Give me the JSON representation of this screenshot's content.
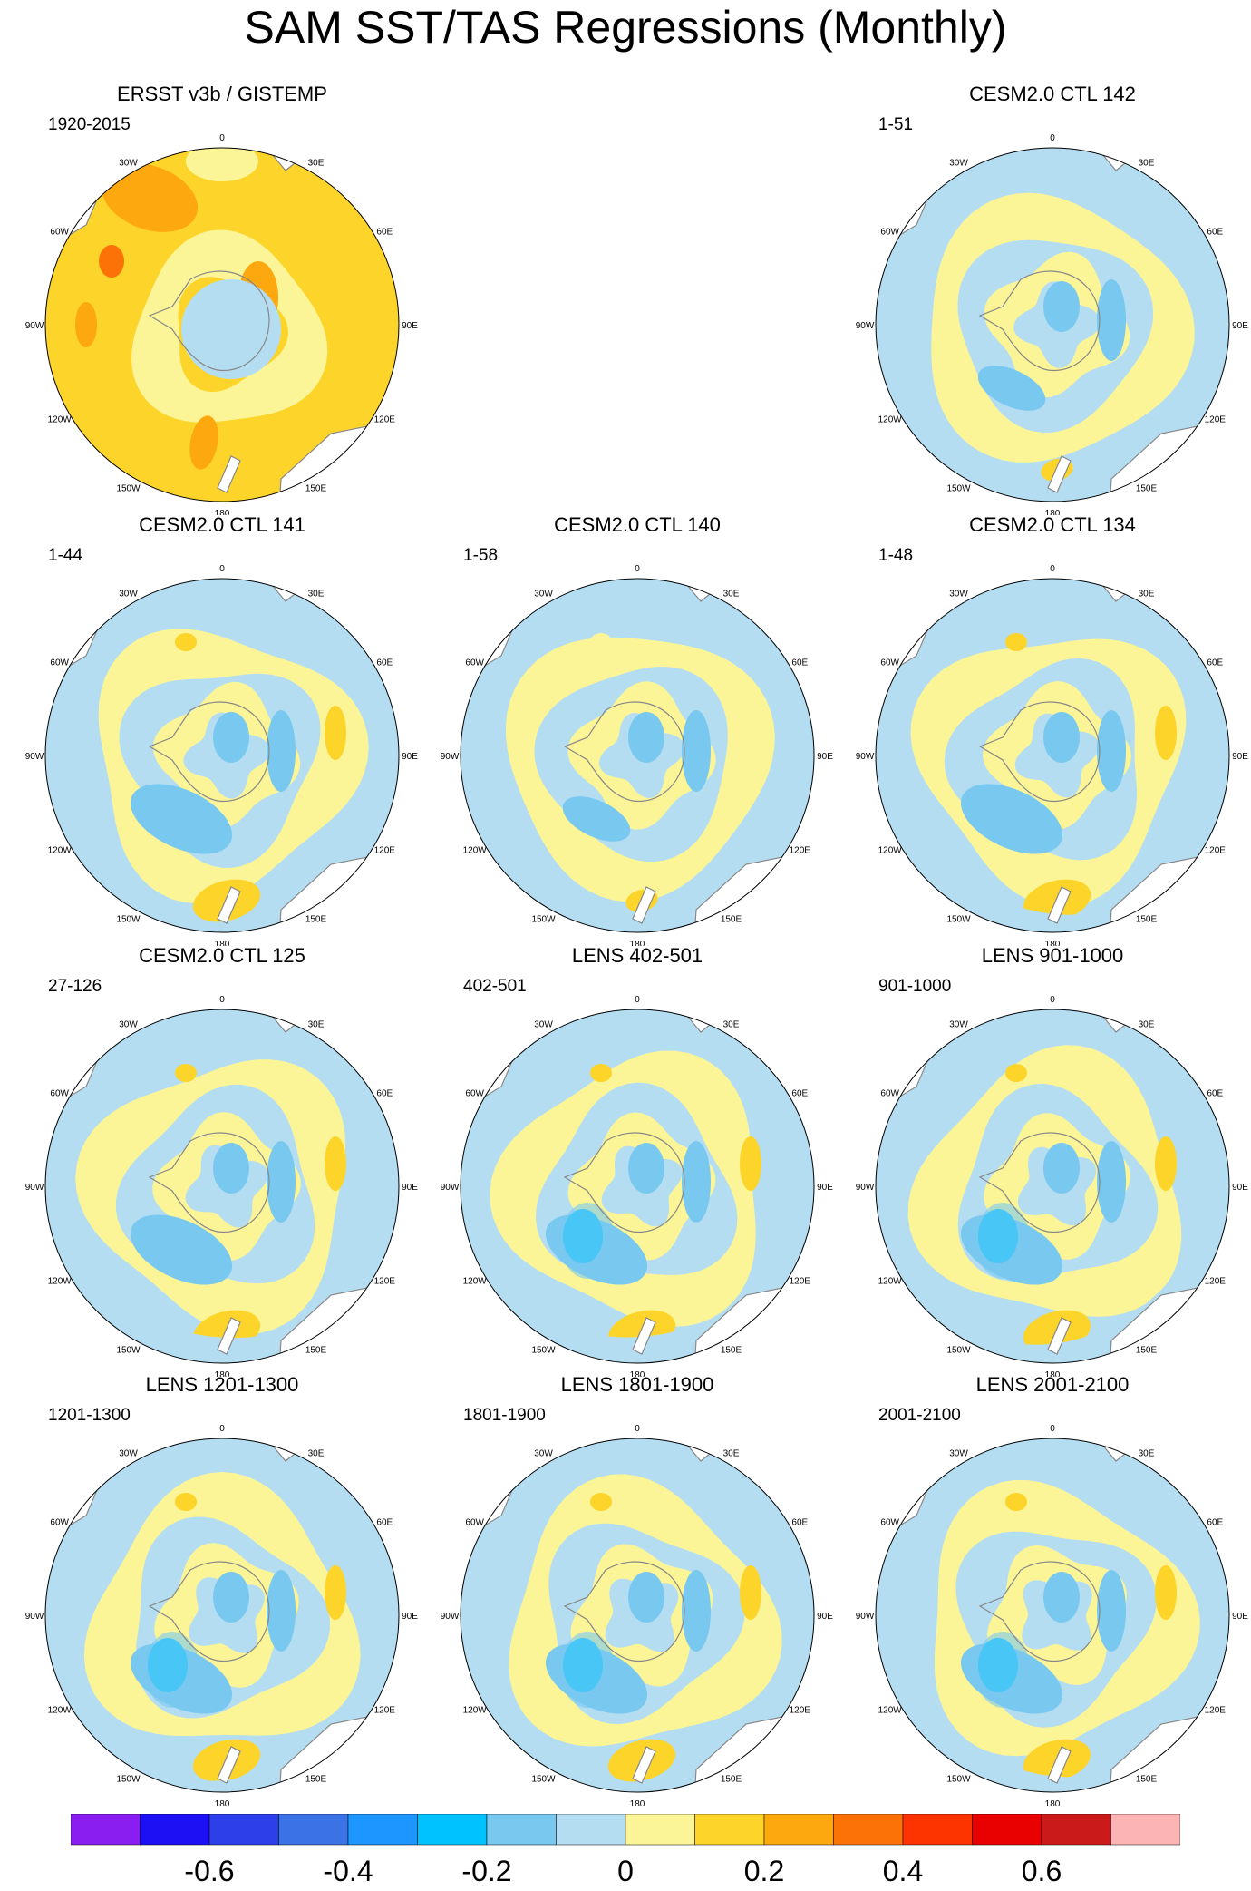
{
  "title": "SAM SST/TAS Regressions (Monthly)",
  "panels": [
    {
      "id": "p1",
      "title": "ERSST v3b / GISTEMP",
      "years": "1920-2015",
      "pattern": "obs"
    },
    {
      "id": "p2",
      "title": "",
      "years": "",
      "pattern": "empty"
    },
    {
      "id": "p3",
      "title": "CESM2.0 CTL 142",
      "years": "1-51",
      "pattern": "weak"
    },
    {
      "id": "p4",
      "title": "CESM2.0 CTL 141",
      "years": "1-44",
      "pattern": "model"
    },
    {
      "id": "p5",
      "title": "CESM2.0 CTL 140",
      "years": "1-58",
      "pattern": "weak"
    },
    {
      "id": "p6",
      "title": "CESM2.0 CTL 134",
      "years": "1-48",
      "pattern": "model"
    },
    {
      "id": "p7",
      "title": "CESM2.0 CTL 125",
      "years": "27-126",
      "pattern": "model"
    },
    {
      "id": "p8",
      "title": "LENS 402-501",
      "years": "402-501",
      "pattern": "lens"
    },
    {
      "id": "p9",
      "title": "LENS 901-1000",
      "years": "901-1000",
      "pattern": "lens"
    },
    {
      "id": "p10",
      "title": "LENS 1201-1300",
      "years": "1201-1300",
      "pattern": "lens"
    },
    {
      "id": "p11",
      "title": "LENS 1801-1900",
      "years": "1801-1900",
      "pattern": "lens"
    },
    {
      "id": "p12",
      "title": "LENS 2001-2100",
      "years": "2001-2100",
      "pattern": "lens"
    }
  ],
  "longitude_labels": [
    "0",
    "30E",
    "60E",
    "90E",
    "120E",
    "150E",
    "180",
    "150W",
    "120W",
    "90W",
    "60W",
    "30W"
  ],
  "colorbar": {
    "colors": [
      "#8a1ef0",
      "#1e10f5",
      "#2c3fe8",
      "#3b72e6",
      "#1e96ff",
      "#00c2ff",
      "#78c8f0",
      "#b4ddf2",
      "#fbf597",
      "#fdd42a",
      "#fda80e",
      "#fd7206",
      "#fd3300",
      "#e90000",
      "#ca1a1a",
      "#fdb4b4"
    ],
    "labels": [
      "-0.6",
      "-0.4",
      "-0.2",
      "0",
      "0.2",
      "0.4",
      "0.6"
    ]
  },
  "map_colors": {
    "land": "#ffffff",
    "coast": "#888888",
    "neg1": "#b4ddf2",
    "neg2": "#78c8f0",
    "neg3": "#00c2ff",
    "pos1": "#fbf597",
    "pos2": "#fdd42a",
    "pos3": "#fda80e"
  }
}
